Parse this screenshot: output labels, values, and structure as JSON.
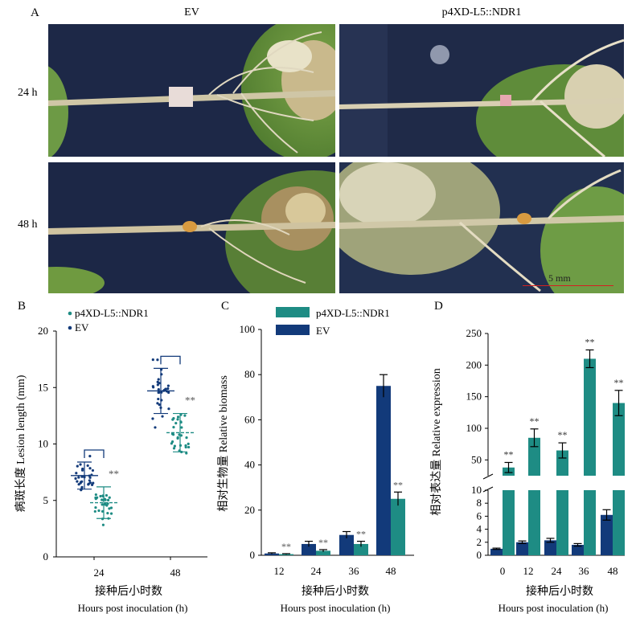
{
  "panel_a": {
    "letter": "A",
    "columns": [
      "EV",
      "p4XD-L5::NDR1"
    ],
    "rows": [
      "24 h",
      "48 h"
    ],
    "scale_bar": "5 mm"
  },
  "colors": {
    "ev": "#123a7a",
    "ndr1": "#1e8c84",
    "scale_bar": "#d42020"
  },
  "chart_data": [
    {
      "panel": "B",
      "type": "scatter",
      "title": "",
      "legend": [
        "p4XD-L5::NDR1",
        "EV"
      ],
      "legend_position": "top-left",
      "ylabel": "病斑长度 Lesion length (mm)",
      "xlabel_cn": "接种后小时数",
      "xlabel_en": "Hours post inoculation (h)",
      "categories": [
        "24",
        "48"
      ],
      "ylim": [
        0,
        20
      ],
      "yticks": [
        "0",
        "5",
        "10",
        "15",
        "20"
      ],
      "series": [
        {
          "name": "EV",
          "mean": [
            7.2,
            14.7
          ],
          "sd": [
            1.2,
            2.0
          ]
        },
        {
          "name": "p4XD-L5::NDR1",
          "mean": [
            4.8,
            11.0
          ],
          "sd": [
            1.4,
            1.7
          ]
        }
      ],
      "annotations": [
        "**",
        "**"
      ],
      "grid": false
    },
    {
      "panel": "C",
      "type": "bar",
      "legend": [
        "p4XD-L5::NDR1",
        "EV"
      ],
      "legend_position": "top-left",
      "ylabel": "相对生物量 Relative biomass",
      "xlabel_cn": "接种后小时数",
      "xlabel_en": "Hours post inoculation (h)",
      "categories": [
        "12",
        "24",
        "36",
        "48"
      ],
      "ylim": [
        0,
        100
      ],
      "yticks": [
        "0",
        "20",
        "40",
        "60",
        "80",
        "100"
      ],
      "series": [
        {
          "name": "EV",
          "values": [
            0.8,
            5.0,
            9.0,
            75.0
          ],
          "err": [
            0.3,
            1.2,
            1.5,
            5.0
          ]
        },
        {
          "name": "p4XD-L5::NDR1",
          "values": [
            0.5,
            2.0,
            5.0,
            25.0
          ],
          "err": [
            0.2,
            0.5,
            1.2,
            3.0
          ]
        }
      ],
      "annotations": [
        "**",
        "**",
        "**",
        "**"
      ],
      "grid": false
    },
    {
      "panel": "D",
      "type": "bar",
      "ylabel": "相对表达量 Relative expression",
      "xlabel_cn": "接种后小时数",
      "xlabel_en": "Hours post inoculation (h)",
      "categories": [
        "0",
        "12",
        "24",
        "36",
        "48"
      ],
      "axis_break": true,
      "upper_ylim": [
        25,
        250
      ],
      "upper_yticks": [
        "50",
        "100",
        "150",
        "200",
        "250"
      ],
      "lower_ylim": [
        0,
        10
      ],
      "lower_yticks": [
        "0",
        "2",
        "4",
        "6",
        "8",
        "10"
      ],
      "series": [
        {
          "name": "EV",
          "values": [
            1.0,
            2.0,
            2.3,
            1.6,
            6.2
          ],
          "err": [
            0.1,
            0.2,
            0.3,
            0.2,
            0.8
          ]
        },
        {
          "name": "p4XD-L5::NDR1",
          "values": [
            38,
            85,
            65,
            210,
            140
          ],
          "err": [
            8,
            14,
            12,
            14,
            20
          ]
        }
      ],
      "annotations": [
        "**",
        "**",
        "**",
        "**",
        "**"
      ],
      "grid": false
    }
  ]
}
